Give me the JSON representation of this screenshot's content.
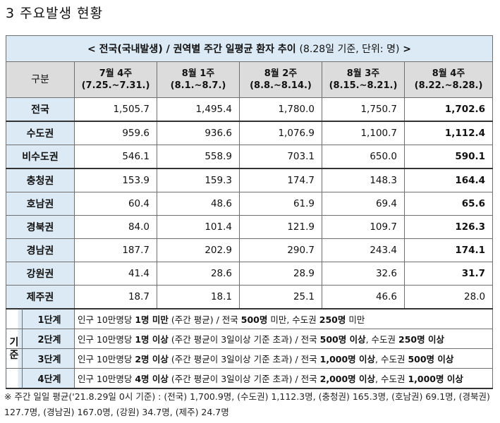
{
  "section_title": "3 주요발생 현황",
  "table": {
    "caption": "< 전국(국내발생) / 권역별 주간 일평균 환자 추이",
    "caption_note": "(8.28일 기준, 단위: 명)",
    "caption_end": ">",
    "header": {
      "first": "구분",
      "weeks": [
        {
          "line1": "7월 4주",
          "line2": "(7.25.~7.31.)"
        },
        {
          "line1": "8월 1주",
          "line2": "(8.1.~8.7.)"
        },
        {
          "line1": "8월 2주",
          "line2": "(8.8.~8.14.)"
        },
        {
          "line1": "8월 3주",
          "line2": "(8.15.~8.21.)"
        },
        {
          "line1": "8월 4주",
          "line2": "(8.22.~8.28.)"
        }
      ]
    },
    "rows": [
      {
        "region": "전국",
        "values": [
          "1,505.7",
          "1,495.4",
          "1,780.0",
          "1,750.7",
          "1,702.6"
        ]
      },
      {
        "region": "수도권",
        "values": [
          "959.6",
          "936.6",
          "1,076.9",
          "1,100.7",
          "1,112.4"
        ]
      },
      {
        "region": "비수도권",
        "values": [
          "546.1",
          "558.9",
          "703.1",
          "650.0",
          "590.1"
        ]
      },
      {
        "region": "충청권",
        "values": [
          "153.9",
          "159.3",
          "174.7",
          "148.3",
          "164.4"
        ]
      },
      {
        "region": "호남권",
        "values": [
          "60.4",
          "48.6",
          "61.9",
          "69.4",
          "65.6"
        ]
      },
      {
        "region": "경북권",
        "values": [
          "84.0",
          "101.4",
          "121.9",
          "109.7",
          "126.3"
        ]
      },
      {
        "region": "경남권",
        "values": [
          "187.7",
          "202.9",
          "290.7",
          "243.4",
          "174.1"
        ]
      },
      {
        "region": "강원권",
        "values": [
          "41.4",
          "28.6",
          "28.9",
          "32.6",
          "31.7"
        ]
      },
      {
        "region": "제주권",
        "values": [
          "18.7",
          "18.1",
          "25.1",
          "46.6",
          "28.0"
        ]
      }
    ],
    "criteria_label": "기준",
    "criteria": [
      {
        "stage": "1단계",
        "parts": [
          {
            "t": "인구 10만명당 ",
            "b": false
          },
          {
            "t": "1명 미만",
            "b": true
          },
          {
            "t": " (주간 평균) / 전국 ",
            "b": false
          },
          {
            "t": "500명",
            "b": true
          },
          {
            "t": " 미만, 수도권 ",
            "b": false
          },
          {
            "t": "250명",
            "b": true
          },
          {
            "t": " 미만",
            "b": false
          }
        ]
      },
      {
        "stage": "2단계",
        "parts": [
          {
            "t": "인구 10만명당 ",
            "b": false
          },
          {
            "t": "1명 이상",
            "b": true
          },
          {
            "t": " (주간 평균이 3일이상 기준 초과) / 전국 ",
            "b": false
          },
          {
            "t": "500명 이상",
            "b": true
          },
          {
            "t": ", 수도권 ",
            "b": false
          },
          {
            "t": "250명 이상",
            "b": true
          }
        ]
      },
      {
        "stage": "3단계",
        "parts": [
          {
            "t": "인구 10만명당 ",
            "b": false
          },
          {
            "t": "2명 이상",
            "b": true
          },
          {
            "t": " (주간 평균이 3일이상 기준 초과) / 전국 ",
            "b": false
          },
          {
            "t": "1,000명 이상",
            "b": true
          },
          {
            "t": ", 수도권 ",
            "b": false
          },
          {
            "t": "500명 이상",
            "b": true
          }
        ]
      },
      {
        "stage": "4단계",
        "parts": [
          {
            "t": "인구 10만명당 ",
            "b": false
          },
          {
            "t": "4명 이상",
            "b": true
          },
          {
            "t": " (주간 평균이 3일이상 기준 초과) / 전국 ",
            "b": false
          },
          {
            "t": "2,000명 이상",
            "b": true
          },
          {
            "t": ", 수도권 ",
            "b": false
          },
          {
            "t": "1,000명 이상",
            "b": true
          }
        ]
      }
    ]
  },
  "footnote": "※ 주간 일일 평균('21.8.29일 0시 기준) : (전국) 1,700.9명, (수도권) 1,112.3명, (충청권) 165.3명, (호남권) 69.1명, (경북권) 127.7명, (경남권) 167.0명, (강원) 34.7명, (제주) 24.7명"
}
